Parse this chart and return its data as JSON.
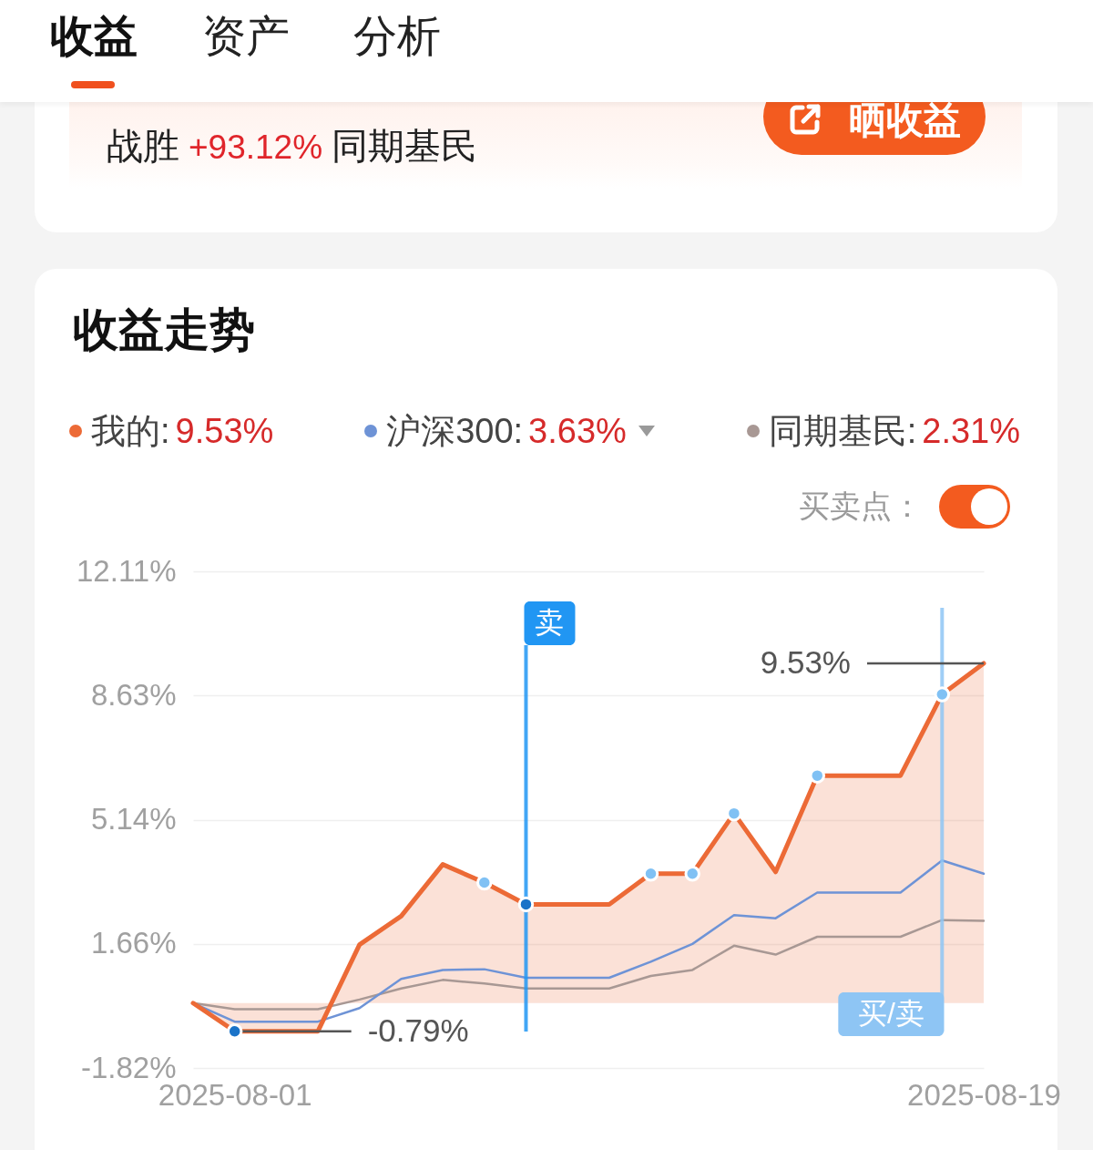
{
  "chart_data": {
    "type": "line",
    "title": "收益走势",
    "x": [
      "2025-07-31",
      "2025-08-01",
      "2025-08-02",
      "2025-08-03",
      "2025-08-04",
      "2025-08-05",
      "2025-08-06",
      "2025-08-07",
      "2025-08-08",
      "2025-08-09",
      "2025-08-10",
      "2025-08-11",
      "2025-08-12",
      "2025-08-13",
      "2025-08-14",
      "2025-08-15",
      "2025-08-16",
      "2025-08-17",
      "2025-08-18",
      "2025-08-19"
    ],
    "xlim": [
      "2025-07-31",
      "2025-08-19"
    ],
    "xticks": [
      "2025-08-01",
      "2025-08-19"
    ],
    "ylim": [
      -1.82,
      12.11
    ],
    "yticks": [
      {
        "value": -1.82,
        "label": "-1.82%"
      },
      {
        "value": 1.66,
        "label": "1.66%"
      },
      {
        "value": 5.14,
        "label": "5.14%"
      },
      {
        "value": 8.63,
        "label": "8.63%"
      },
      {
        "value": 12.11,
        "label": "12.11%"
      }
    ],
    "grid": "y",
    "legend": "top",
    "series": [
      {
        "name": "我的:",
        "type": "area",
        "color": "#ec6a36",
        "values": [
          0,
          -0.79,
          -0.79,
          -0.79,
          1.64,
          2.44,
          3.89,
          3.38,
          2.77,
          2.77,
          2.77,
          3.63,
          3.63,
          5.32,
          3.68,
          6.38,
          6.38,
          6.38,
          8.66,
          9.53
        ],
        "value_labels": [
          null,
          "-0.79%",
          null,
          null,
          null,
          null,
          null,
          null,
          null,
          null,
          null,
          null,
          null,
          null,
          null,
          null,
          null,
          null,
          null,
          "9.53%"
        ]
      },
      {
        "name": "沪深300:",
        "color": "#6e93d6",
        "values": [
          0,
          -0.52,
          -0.52,
          -0.52,
          -0.14,
          0.68,
          0.93,
          0.95,
          0.71,
          0.71,
          0.71,
          1.16,
          1.66,
          2.47,
          2.38,
          3.1,
          3.1,
          3.1,
          4.0,
          3.63
        ]
      },
      {
        "name": "同期基民:",
        "color": "#a89894",
        "values": [
          0,
          -0.17,
          -0.17,
          -0.17,
          0.1,
          0.41,
          0.65,
          0.55,
          0.41,
          0.41,
          0.41,
          0.76,
          0.93,
          1.61,
          1.36,
          1.86,
          1.86,
          1.86,
          2.33,
          2.31
        ]
      },
      {
        "type": "scatter",
        "marker": "circle",
        "color": "#80c1f4",
        "values": [
          null,
          null,
          null,
          null,
          null,
          null,
          null,
          3.38,
          null,
          null,
          null,
          3.63,
          3.63,
          5.32,
          null,
          6.38,
          null,
          null,
          8.66,
          null
        ]
      },
      {
        "type": "scatter",
        "marker": "circle",
        "color": "#1a73c8",
        "values": [
          null,
          -0.79,
          null,
          null,
          null,
          null,
          null,
          null,
          2.77,
          null,
          null,
          null,
          null,
          null,
          null,
          null,
          null,
          null,
          null,
          null
        ]
      }
    ],
    "ref_lines": [
      {
        "axis": "x",
        "value": "2025-08-08",
        "label": "卖",
        "color": "#2196f3"
      },
      {
        "axis": "x",
        "value": "2025-08-18",
        "label": "买/卖",
        "color": "#8ec5f4"
      }
    ],
    "annotations": [
      "收益",
      "资产",
      "分析",
      "战胜",
      "+93.12%",
      "同期基民",
      "晒收益",
      "9.53%",
      "3.63%",
      "2.31%",
      "买卖点："
    ]
  }
}
